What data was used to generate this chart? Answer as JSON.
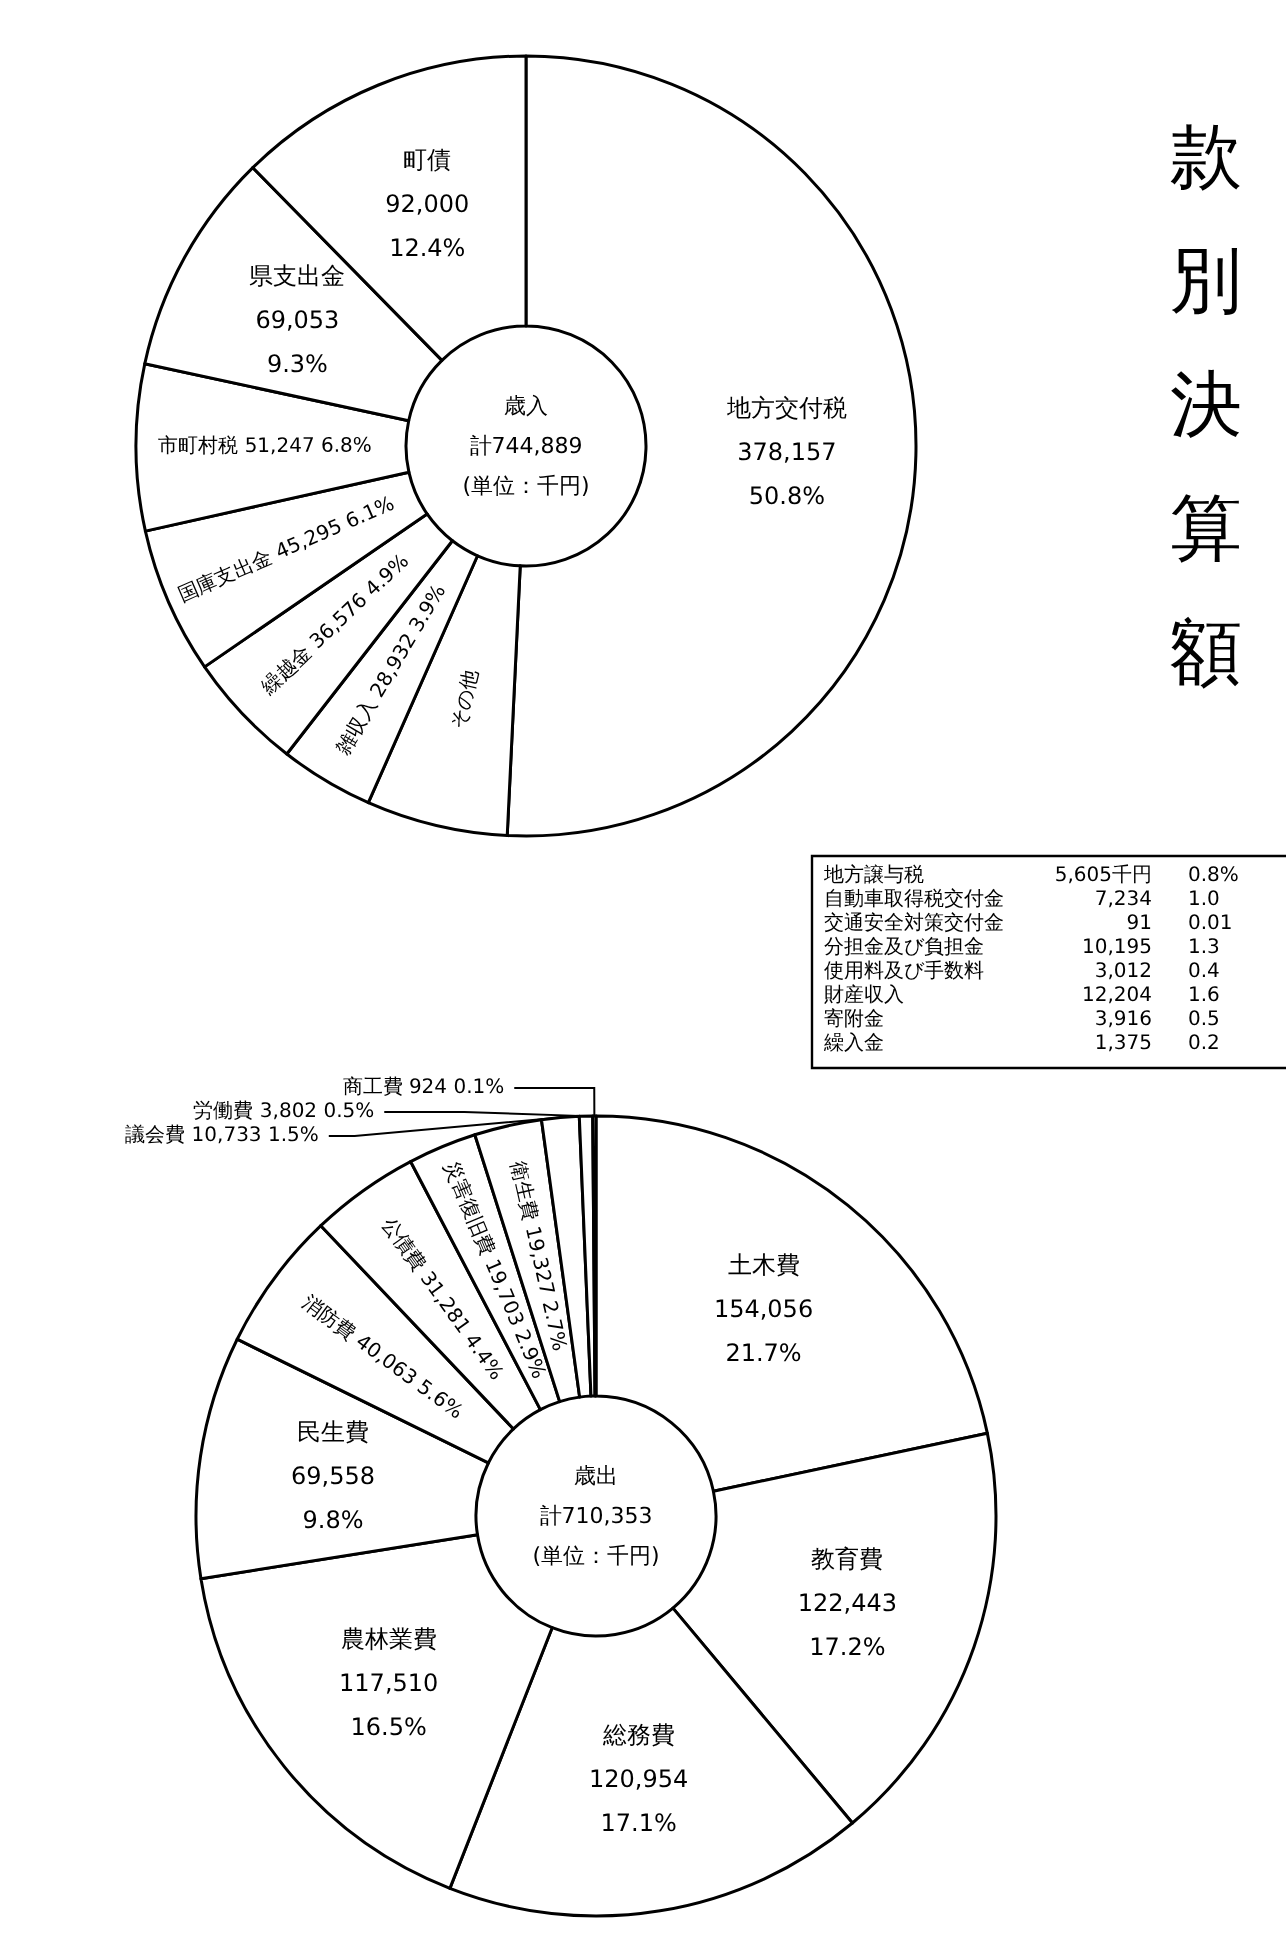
{
  "chart_data": [
    {
      "type": "other",
      "title": "款別決算額"
    },
    {
      "type": "donut",
      "title": "歳入",
      "subtitle": "計744,889",
      "annotations": [
        "(単位：千円)",
        "地方譲与税\t5,605千円\t0.8%",
        "自動車取得税交付金\t7,234\t1.0",
        "交通安全対策交付金\t91\t0.01",
        "分担金及び負担金\t10,195\t1.3",
        "使用料及び手数料\t3,012\t0.4",
        "財産収入\t12,204\t1.6",
        "寄附金\t3,916\t0.5",
        "繰入金\t1,375\t0.2"
      ],
      "categories": [
        "地方交付税",
        "その他",
        "雑収入",
        "繰越金",
        "国庫支出金",
        "市町村税",
        "県支出金",
        "町債"
      ],
      "values": [
        378157,
        43632,
        28932,
        36576,
        45295,
        51247,
        69053,
        92000
      ],
      "value_labels": [
        "378,157\n50.8%",
        null,
        "28,932\n3.9%",
        "36,576\n4.9%",
        "45,295\n6.1%",
        "51,247\n6.8%",
        "69,053\n9.3%",
        "92,000\n12.4%"
      ],
      "colors": [
        "#ffffff",
        "#ffffff",
        "#ffffff",
        "#ffffff",
        "#ffffff",
        "#ffffff",
        "#ffffff",
        "#ffffff"
      ]
    },
    {
      "type": "donut",
      "title": "歳出",
      "subtitle": "計710,353",
      "annotations": [
        "(単位：千円)"
      ],
      "categories": [
        "土木費",
        "教育費",
        "総務費",
        "農林業費",
        "民生費",
        "消防費",
        "公債費",
        "災害復旧費",
        "衛生費",
        "議会費",
        "労働費",
        "商工費"
      ],
      "values": [
        154056,
        122443,
        120954,
        117510,
        69558,
        40063,
        31281,
        19703,
        19327,
        10733,
        3802,
        924
      ],
      "value_labels": [
        "154,056\n21.7%",
        "122,443\n17.2%",
        "120,954\n17.1%",
        "117,510\n16.5%",
        "69,558\n9.8%",
        "40,063\n5.6%",
        "31,281\n4.4%",
        "19,703\n2.9%",
        "19,327\n2.7%",
        "10,733\n1.5%",
        "3,802\n0.5%",
        "924\n0.1%"
      ],
      "colors": [
        "#ffffff",
        "#ffffff",
        "#ffffff",
        "#ffffff",
        "#ffffff",
        "#ffffff",
        "#ffffff",
        "#ffffff",
        "#ffffff",
        "#ffffff",
        "#ffffff",
        "#ffffff"
      ]
    }
  ]
}
